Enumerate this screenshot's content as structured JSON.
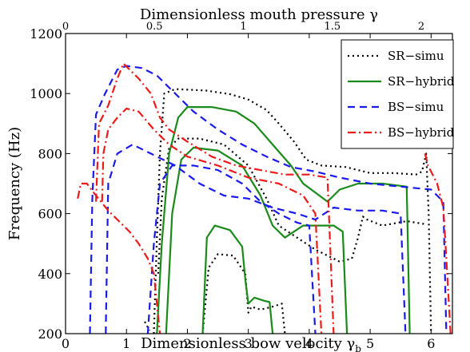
{
  "chart_data": {
    "type": "line",
    "title": "",
    "xlabel": "Dimensionless bow velocity γ",
    "xlabel_subscript": "b",
    "ylabel": "Frequency (Hz)",
    "x2label": "Dimensionless mouth pressure γ",
    "xlim": [
      0,
      6.35
    ],
    "ylim": [
      200,
      1200
    ],
    "x2lim": [
      0,
      2.175
    ],
    "xticks": [
      0,
      1,
      2,
      3,
      4,
      5,
      6
    ],
    "yticks": [
      200,
      400,
      600,
      800,
      1000,
      1200
    ],
    "x2ticks": [
      0,
      0.5,
      1,
      1.5,
      2
    ],
    "x2ticklabels": [
      "0",
      "0.5",
      "1",
      "1.5",
      "2"
    ],
    "grid": false,
    "legend": "top-right",
    "series": [
      {
        "name": "SR−simu",
        "color": "#000000",
        "dash": "2,4",
        "segments": [
          [
            [
              1.3,
              240
            ],
            [
              1.38,
              210
            ]
          ],
          [
            [
              1.45,
              200
            ],
            [
              1.5,
              520
            ],
            [
              1.55,
              800
            ],
            [
              1.62,
              1000
            ],
            [
              1.8,
              1015
            ],
            [
              2.3,
              1010
            ],
            [
              2.7,
              998
            ],
            [
              3.0,
              980
            ],
            [
              3.3,
              945
            ],
            [
              3.5,
              900
            ],
            [
              3.75,
              840
            ],
            [
              3.95,
              780
            ],
            [
              4.2,
              760
            ],
            [
              4.6,
              755
            ],
            [
              5.0,
              735
            ],
            [
              5.4,
              735
            ],
            [
              5.75,
              730
            ],
            [
              5.85,
              740
            ],
            [
              5.92,
              800
            ],
            [
              5.96,
              600
            ],
            [
              6.0,
              200
            ]
          ],
          [
            [
              1.52,
              400
            ],
            [
              1.58,
              650
            ],
            [
              1.7,
              820
            ],
            [
              1.85,
              850
            ],
            [
              2.2,
              850
            ],
            [
              2.6,
              830
            ],
            [
              3.0,
              760
            ],
            [
              3.3,
              650
            ],
            [
              3.5,
              560
            ],
            [
              3.8,
              520
            ],
            [
              4.1,
              480
            ],
            [
              4.5,
              440
            ],
            [
              4.7,
              450
            ],
            [
              4.8,
              520
            ],
            [
              4.88,
              590
            ],
            [
              4.95,
              580
            ],
            [
              5.2,
              560
            ],
            [
              5.6,
              575
            ],
            [
              5.9,
              565
            ]
          ],
          [
            [
              2.25,
              200
            ],
            [
              2.35,
              420
            ],
            [
              2.5,
              465
            ],
            [
              2.75,
              460
            ],
            [
              2.95,
              400
            ],
            [
              3.0,
              270
            ],
            [
              3.05,
              290
            ],
            [
              3.2,
              280
            ],
            [
              3.4,
              290
            ],
            [
              3.55,
              300
            ],
            [
              3.6,
              200
            ]
          ]
        ]
      },
      {
        "name": "SR−hybrid",
        "color": "#1a8a1a",
        "dash": "",
        "segments": [
          [
            [
              1.5,
              200
            ],
            [
              1.58,
              500
            ],
            [
              1.7,
              800
            ],
            [
              1.85,
              920
            ],
            [
              2.0,
              955
            ],
            [
              2.4,
              955
            ],
            [
              2.8,
              940
            ],
            [
              3.1,
              900
            ],
            [
              3.4,
              830
            ],
            [
              3.7,
              760
            ],
            [
              3.9,
              700
            ],
            [
              4.1,
              670
            ],
            [
              4.3,
              640
            ],
            [
              4.5,
              680
            ],
            [
              4.8,
              700
            ],
            [
              5.2,
              700
            ],
            [
              5.6,
              690
            ],
            [
              5.65,
              200
            ]
          ],
          [
            [
              1.65,
              200
            ],
            [
              1.75,
              600
            ],
            [
              1.9,
              780
            ],
            [
              2.1,
              820
            ],
            [
              2.5,
              810
            ],
            [
              2.9,
              760
            ],
            [
              3.2,
              660
            ],
            [
              3.4,
              560
            ],
            [
              3.6,
              520
            ],
            [
              3.9,
              560
            ],
            [
              4.2,
              560
            ],
            [
              4.4,
              560
            ],
            [
              4.55,
              540
            ],
            [
              4.62,
              200
            ]
          ],
          [
            [
              2.25,
              200
            ],
            [
              2.32,
              520
            ],
            [
              2.45,
              560
            ],
            [
              2.7,
              545
            ],
            [
              2.9,
              490
            ],
            [
              2.95,
              380
            ],
            [
              3.0,
              300
            ],
            [
              3.1,
              320
            ],
            [
              3.25,
              310
            ],
            [
              3.35,
              305
            ],
            [
              3.4,
              200
            ]
          ]
        ]
      },
      {
        "name": "BS−simu",
        "color": "#1a1aee",
        "dash": "9,6",
        "segments": [
          [
            [
              0.4,
              200
            ],
            [
              0.44,
              650
            ],
            [
              0.5,
              930
            ],
            [
              0.65,
              1000
            ],
            [
              0.85,
              1080
            ],
            [
              1.0,
              1092
            ],
            [
              1.25,
              1085
            ],
            [
              1.5,
              1060
            ],
            [
              1.8,
              1000
            ],
            [
              2.1,
              940
            ],
            [
              2.5,
              880
            ],
            [
              2.9,
              830
            ],
            [
              3.3,
              790
            ],
            [
              3.7,
              755
            ],
            [
              4.1,
              740
            ],
            [
              4.5,
              720
            ],
            [
              5.0,
              700
            ],
            [
              5.5,
              690
            ],
            [
              6.0,
              680
            ],
            [
              6.1,
              660
            ],
            [
              6.2,
              640
            ],
            [
              6.25,
              200
            ]
          ],
          [
            [
              0.66,
              200
            ],
            [
              0.7,
              700
            ],
            [
              0.85,
              800
            ],
            [
              1.1,
              830
            ],
            [
              1.4,
              800
            ],
            [
              1.8,
              760
            ],
            [
              2.2,
              700
            ],
            [
              2.6,
              660
            ],
            [
              3.0,
              650
            ],
            [
              3.4,
              620
            ],
            [
              3.8,
              600
            ],
            [
              4.1,
              580
            ],
            [
              4.4,
              620
            ],
            [
              4.8,
              610
            ],
            [
              5.2,
              610
            ],
            [
              5.5,
              600
            ],
            [
              5.58,
              200
            ]
          ],
          [
            [
              1.35,
              200
            ],
            [
              1.45,
              500
            ],
            [
              1.55,
              700
            ],
            [
              1.75,
              760
            ],
            [
              2.1,
              760
            ],
            [
              2.5,
              745
            ],
            [
              2.9,
              700
            ],
            [
              3.2,
              640
            ],
            [
              3.5,
              600
            ],
            [
              3.8,
              570
            ],
            [
              4.0,
              560
            ],
            [
              4.1,
              200
            ]
          ]
        ]
      },
      {
        "name": "BS−hybrid",
        "color": "#ee1a1a",
        "dash": "10,4,2,4",
        "segments": [
          [
            [
              0.2,
              650
            ],
            [
              0.25,
              700
            ],
            [
              0.35,
              700
            ],
            [
              0.5,
              660
            ],
            [
              0.7,
              610
            ],
            [
              0.9,
              570
            ],
            [
              1.05,
              540
            ],
            [
              1.2,
              500
            ],
            [
              1.35,
              450
            ],
            [
              1.45,
              400
            ],
            [
              1.55,
              200
            ]
          ],
          [
            [
              0.5,
              640
            ],
            [
              0.55,
              900
            ],
            [
              0.7,
              960
            ],
            [
              0.85,
              1050
            ],
            [
              0.95,
              1100
            ],
            [
              1.05,
              1080
            ],
            [
              1.2,
              1050
            ],
            [
              1.4,
              1000
            ],
            [
              1.55,
              920
            ],
            [
              1.7,
              880
            ],
            [
              2.0,
              840
            ],
            [
              2.4,
              790
            ],
            [
              2.8,
              760
            ],
            [
              3.2,
              745
            ],
            [
              3.6,
              730
            ],
            [
              4.0,
              730
            ],
            [
              4.3,
              720
            ],
            [
              4.4,
              200
            ]
          ],
          [
            [
              0.6,
              640
            ],
            [
              0.62,
              800
            ],
            [
              0.7,
              880
            ],
            [
              0.85,
              920
            ],
            [
              1.0,
              950
            ],
            [
              1.2,
              940
            ],
            [
              1.45,
              880
            ],
            [
              1.7,
              830
            ],
            [
              2.0,
              790
            ],
            [
              2.5,
              760
            ],
            [
              3.0,
              720
            ],
            [
              3.5,
              700
            ],
            [
              3.9,
              660
            ],
            [
              4.1,
              600
            ],
            [
              4.2,
              200
            ]
          ],
          [
            [
              5.9,
              800
            ],
            [
              5.95,
              760
            ],
            [
              6.1,
              700
            ],
            [
              6.2,
              620
            ],
            [
              6.25,
              450
            ],
            [
              6.32,
              200
            ]
          ]
        ]
      }
    ]
  }
}
